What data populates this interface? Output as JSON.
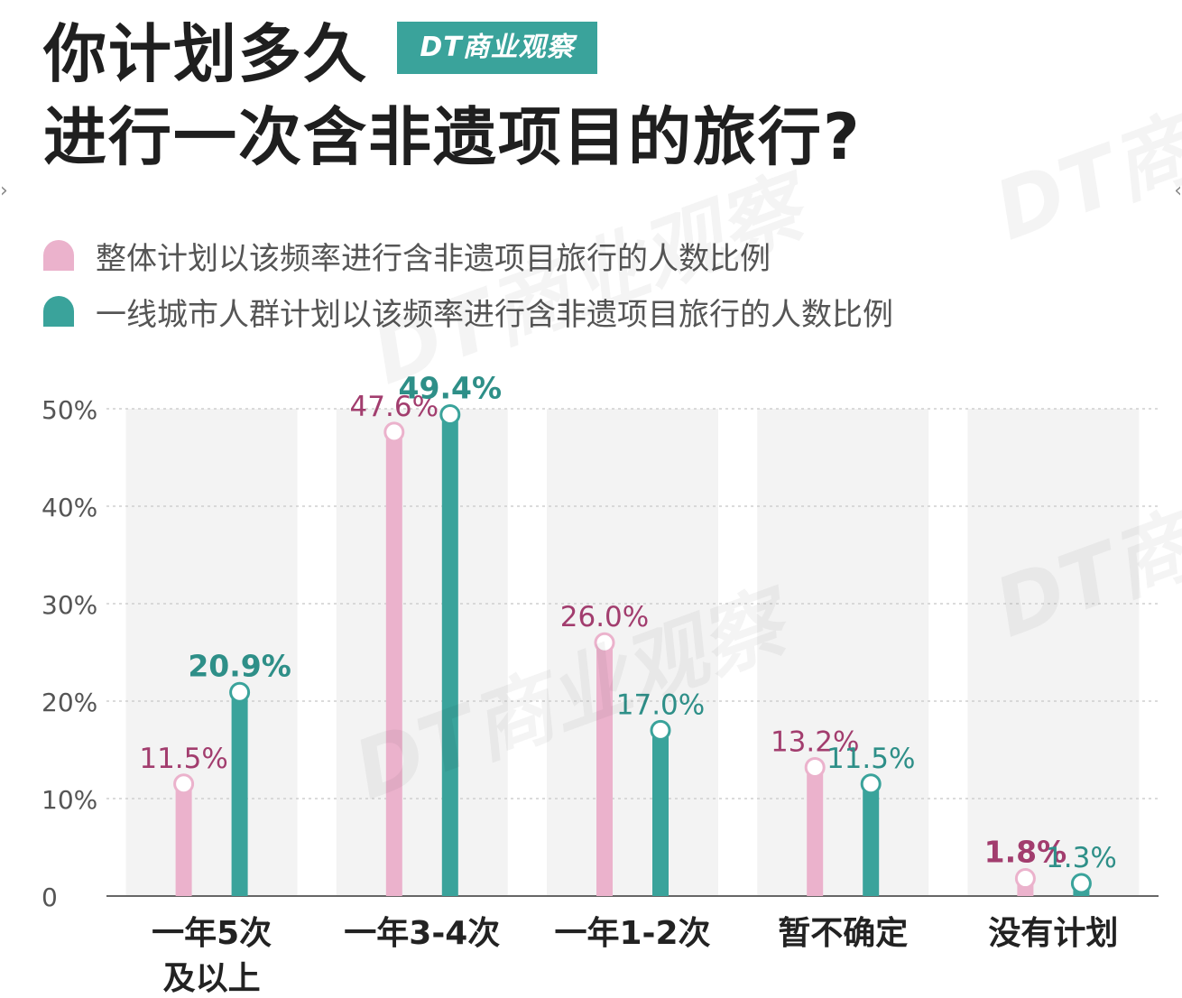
{
  "title": {
    "line1": "你计划多久",
    "line2": "进行一次含非遗项目的旅行?"
  },
  "logo_text": "DT商业观察",
  "watermark_text": "DT商业观察",
  "colors": {
    "pink": "#ebb2cc",
    "teal": "#3aa39b",
    "pink_label": "#a23d6e",
    "teal_label": "#2e8f88",
    "band": "#f3f3f3",
    "grid": "#cfcfcf",
    "axis": "#555555"
  },
  "chart_data": {
    "type": "bar",
    "categories": [
      [
        "一年5次",
        "及以上"
      ],
      [
        "一年3-4次"
      ],
      [
        "一年1-2次"
      ],
      [
        "暂不确定"
      ],
      [
        "没有计划"
      ]
    ],
    "series": [
      {
        "name": "整体计划以该频率进行含非遗项目旅行的人数比例",
        "color": "#ebb2cc",
        "values": [
          11.5,
          47.6,
          26.0,
          13.2,
          1.8
        ],
        "labels": [
          "11.5%",
          "47.6%",
          "26.0%",
          "13.2%",
          "1.8%"
        ],
        "bold": [
          false,
          false,
          false,
          false,
          true
        ]
      },
      {
        "name": "一线城市人群计划以该频率进行含非遗项目旅行的人数比例",
        "color": "#3aa39b",
        "values": [
          20.9,
          49.4,
          17.0,
          11.5,
          1.3
        ],
        "labels": [
          "20.9%",
          "49.4%",
          "17.0%",
          "11.5%",
          "1.3%"
        ],
        "bold": [
          true,
          true,
          false,
          false,
          false
        ]
      }
    ],
    "yticks": [
      0,
      10,
      20,
      30,
      40,
      50
    ],
    "ytick_labels": [
      "0",
      "10%",
      "20%",
      "30%",
      "40%",
      "50%"
    ],
    "ylim": [
      0,
      50
    ],
    "grid": true,
    "legend": "top-left"
  }
}
